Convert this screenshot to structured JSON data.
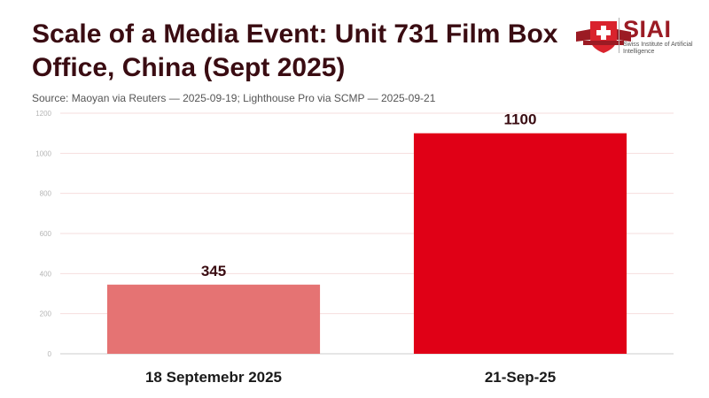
{
  "header": {
    "title": "Scale of a Media Event: Unit 731 Film Box Office, China (Sept 2025)",
    "source": "Source: Maoyan via Reuters — 2025-09-19; Lighthouse Pro via SCMP — 2025-09-21"
  },
  "logo": {
    "name": "SIAI",
    "subtitle": "Swiss Institute of Artificial Intelligence",
    "brand_color": "#9b1b24",
    "icon": "swiss-cross-shield-icon"
  },
  "chart_data": {
    "type": "bar",
    "title": "Scale of a Media Event: Unit 731 Film Box Office, China (Sept 2025)",
    "xlabel": "",
    "ylabel": "",
    "categories": [
      "18 Septemebr 2025",
      "21-Sep-25"
    ],
    "values": [
      345,
      1100
    ],
    "value_labels": [
      "345",
      "1100"
    ],
    "bar_colors": [
      "#e57373",
      "#e00016"
    ],
    "ylim": [
      0,
      1200
    ],
    "yticks": [
      0,
      200,
      400,
      600,
      800,
      1000,
      1200
    ],
    "grid": true,
    "legend": "none"
  }
}
